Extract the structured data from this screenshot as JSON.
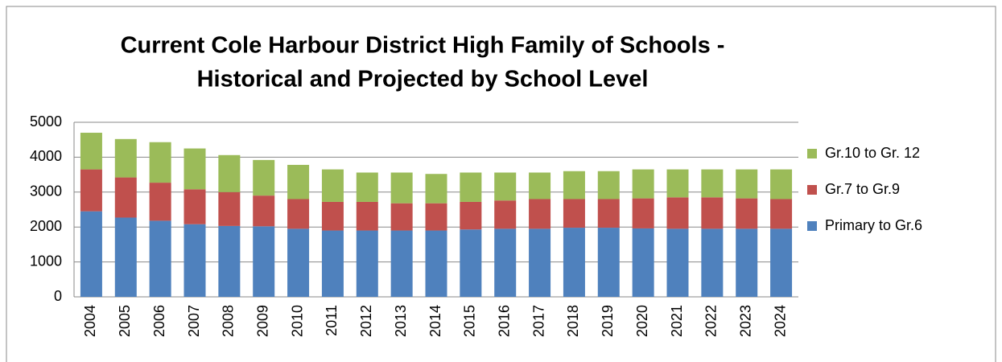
{
  "chart_data": {
    "type": "stacked_bar",
    "title": [
      "Current Cole Harbour District High Family of Schools -",
      "Historical and Projected by School Level"
    ],
    "categories": [
      "2004",
      "2005",
      "2006",
      "2007",
      "2008",
      "2009",
      "2010",
      "2011",
      "2012",
      "2013",
      "2014",
      "2015",
      "2016",
      "2017",
      "2018",
      "2019",
      "2020",
      "2021",
      "2022",
      "2023",
      "2024"
    ],
    "series": [
      {
        "name": "Primary to Gr.6",
        "color": "#4f81bd",
        "values": [
          2450,
          2270,
          2180,
          2080,
          2030,
          2020,
          1950,
          1900,
          1900,
          1900,
          1900,
          1930,
          1950,
          1950,
          1980,
          1980,
          1960,
          1950,
          1950,
          1950,
          1950
        ]
      },
      {
        "name": "Gr.7 to Gr.9",
        "color": "#c0504d",
        "values": [
          1200,
          1150,
          1090,
          1000,
          970,
          880,
          850,
          820,
          820,
          780,
          780,
          790,
          810,
          850,
          820,
          820,
          860,
          900,
          900,
          870,
          850
        ]
      },
      {
        "name": "Gr.10 to Gr. 12",
        "color": "#9bbb59",
        "values": [
          1050,
          1100,
          1160,
          1170,
          1060,
          1020,
          980,
          930,
          840,
          880,
          840,
          840,
          800,
          760,
          800,
          800,
          830,
          800,
          800,
          830,
          850
        ]
      }
    ],
    "ylim": [
      0,
      5000
    ],
    "yticks": [
      0,
      1000,
      2000,
      3000,
      4000,
      5000
    ],
    "grid": true,
    "legend": "right"
  }
}
